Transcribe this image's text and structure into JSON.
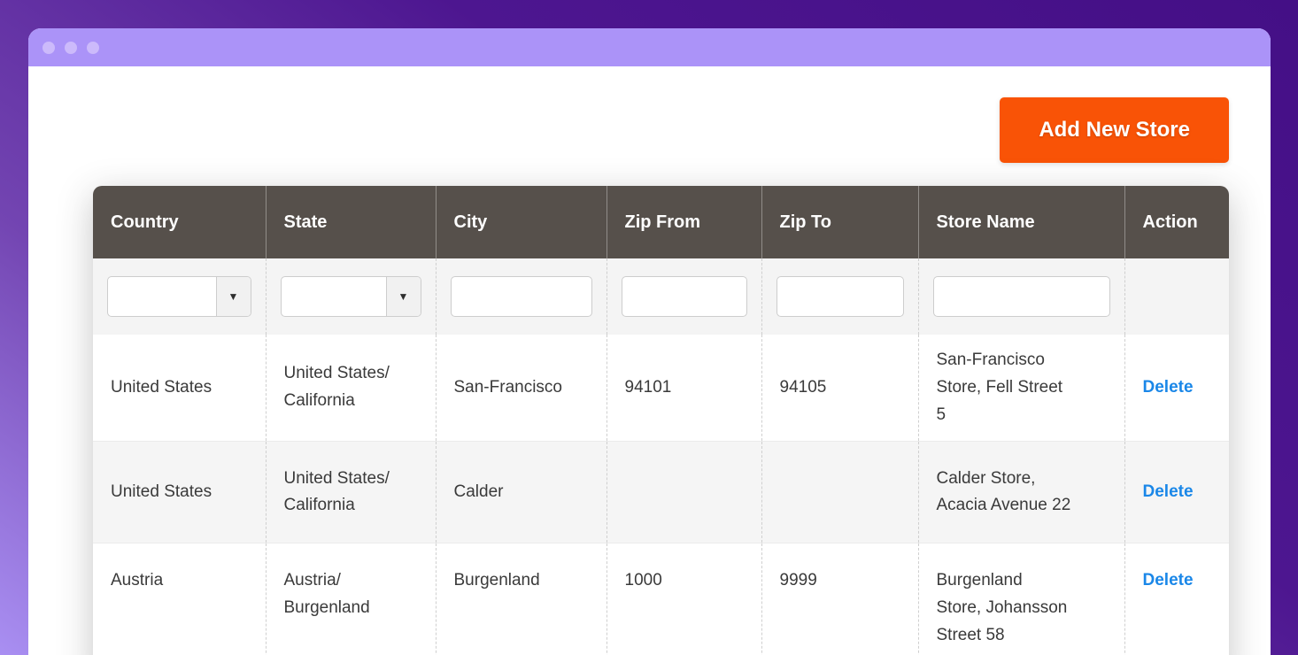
{
  "toolbar": {
    "add_store_button": "Add New Store"
  },
  "table": {
    "columns": [
      {
        "key": "country",
        "label": "Country",
        "filter": "select",
        "value": ""
      },
      {
        "key": "state",
        "label": "State",
        "filter": "select",
        "value": ""
      },
      {
        "key": "city",
        "label": "City",
        "filter": "text",
        "value": ""
      },
      {
        "key": "zip_from",
        "label": "Zip From",
        "filter": "text",
        "value": ""
      },
      {
        "key": "zip_to",
        "label": "Zip To",
        "filter": "text",
        "value": ""
      },
      {
        "key": "store_name",
        "label": "Store Name",
        "filter": "text",
        "value": ""
      },
      {
        "key": "action",
        "label": "Action",
        "filter": "none",
        "value": ""
      }
    ],
    "rows": [
      {
        "country": "United States",
        "state": "United States/\nCalifornia",
        "city": "San-Francisco",
        "zip_from": "94101",
        "zip_to": "94105",
        "store_name": "San-Francisco\nStore, Fell Street\n5",
        "action": "Delete"
      },
      {
        "country": "United States",
        "state": "United States/\nCalifornia",
        "city": "Calder",
        "zip_from": "",
        "zip_to": "",
        "store_name": "Calder Store,\nAcacia Avenue 22",
        "action": "Delete"
      },
      {
        "country": "Austria",
        "state": "Austria/\nBurgenland",
        "city": "Burgenland",
        "zip_from": "1000",
        "zip_to": "9999",
        "store_name": "Burgenland\nStore, Johansson\nStreet 58",
        "action": "Delete"
      }
    ]
  },
  "icons": {
    "dropdown_arrow": "▼"
  },
  "colors": {
    "accent_orange": "#f95306",
    "header_bg": "#56504b",
    "link_blue": "#1a87e8",
    "titlebar_purple": "#ab93f8",
    "bg_gradient_start": "#440f86",
    "bg_gradient_end": "#a98ff2"
  }
}
